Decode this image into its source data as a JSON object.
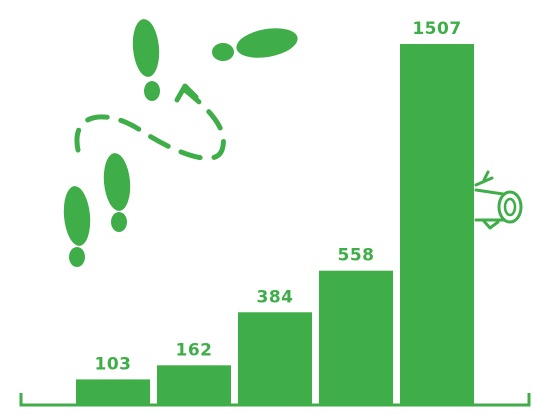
{
  "colors": {
    "accent": "#3fae49",
    "background": "#ffffff"
  },
  "icons": {
    "footprints": "footprints-icon",
    "dashed_path": "dashed-arrow-path-icon",
    "log": "log-icon"
  },
  "chart_data": {
    "type": "bar",
    "values": [
      103,
      162,
      384,
      558,
      1507
    ],
    "data_labels": [
      "103",
      "162",
      "384",
      "558",
      "1507"
    ],
    "ylim": [
      0,
      1507
    ],
    "grid": false,
    "legend": "none"
  }
}
